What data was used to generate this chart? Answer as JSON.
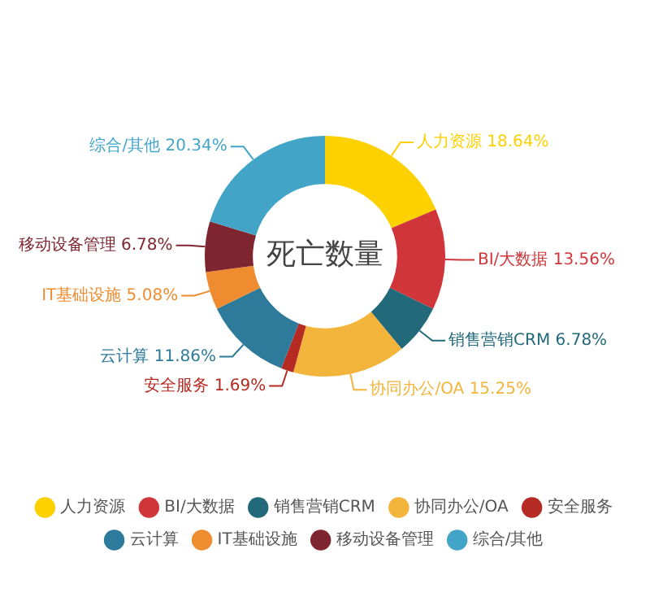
{
  "chart_data": {
    "type": "donut",
    "title": "死亡数量",
    "categories": [
      "人力资源",
      "BI/大数据",
      "销售营销CRM",
      "协同办公/OA",
      "安全服务",
      "云计算",
      "IT基础设施",
      "移动设备管理",
      "综合/其他"
    ],
    "values": [
      18.64,
      13.56,
      6.78,
      15.25,
      1.69,
      11.86,
      5.08,
      6.78,
      20.34
    ],
    "value_labels": [
      "18.64%",
      "13.56%",
      "6.78%",
      "15.25%",
      "1.69%",
      "11.86%",
      "5.08%",
      "6.78%",
      "20.34%"
    ],
    "colors": [
      "#fdd000",
      "#d0353a",
      "#22697a",
      "#f2b43a",
      "#b52a22",
      "#2d7a9a",
      "#f08c30",
      "#7e2530",
      "#42a5c8"
    ],
    "legend": "bottom"
  }
}
